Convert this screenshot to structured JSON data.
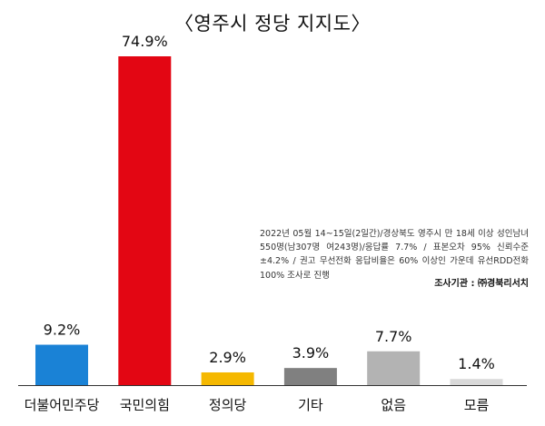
{
  "title": "〈영주시 정당 지지도〉",
  "note": "2022년 05월 14~15일(2일간)/경상북도 영주시 만 18세 이상 성인남녀 550명(남307명 여243명)/응답률 7.7% / 표본오차 95% 신뢰수준 ±4.2% / 권고 무선전화 응답비율은 60% 이상인 가운데 유선RDD전화 100% 조사로 진행",
  "credit": "조사기관 : ㈜경북리서치",
  "chart_data": {
    "type": "bar",
    "title": "〈영주시 정당 지지도〉",
    "categories": [
      "더불어민주당",
      "국민의힘",
      "정의당",
      "기타",
      "없음",
      "모름"
    ],
    "values": [
      9.2,
      74.9,
      2.9,
      3.9,
      7.7,
      1.4
    ],
    "value_labels": [
      "9.2%",
      "74.9%",
      "2.9%",
      "3.9%",
      "7.7%",
      "1.4%"
    ],
    "colors": [
      "#1a82d6",
      "#e30613",
      "#f5b800",
      "#808080",
      "#b3b3b3",
      "#d9d9d9"
    ],
    "ylim": [
      0,
      74.9
    ],
    "grid": false,
    "legend": "none"
  }
}
